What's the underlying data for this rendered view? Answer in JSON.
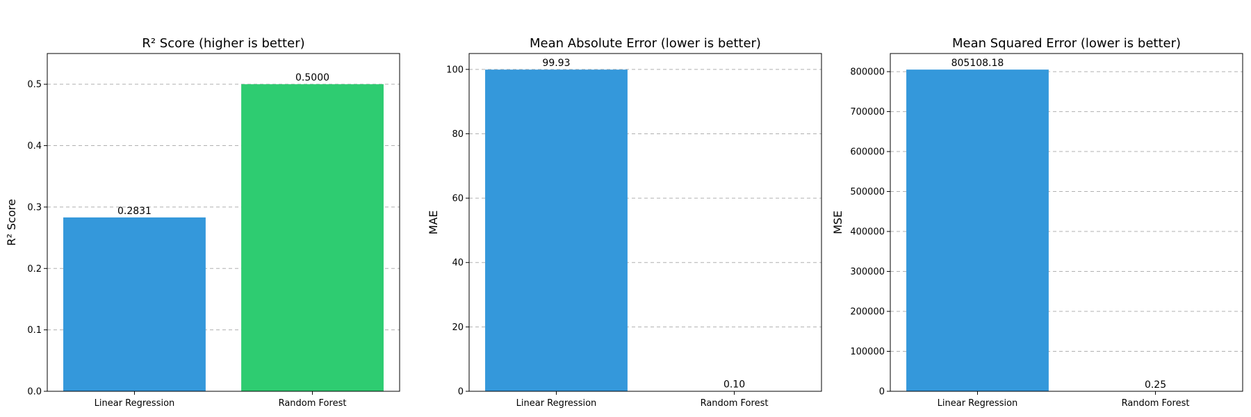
{
  "chart_data": [
    {
      "type": "bar",
      "title": "R² Score (higher is better)",
      "xlabel": "",
      "ylabel": "R² Score",
      "categories": [
        "Linear Regression",
        "Random Forest"
      ],
      "values": [
        0.2831,
        0.5
      ],
      "data_labels": [
        "0.2831",
        "0.5000"
      ],
      "colors": [
        "#3498db",
        "#2ecc71"
      ],
      "ylim": [
        0,
        0.55
      ],
      "yticks": [
        0.0,
        0.1,
        0.2,
        0.3,
        0.4,
        0.5
      ],
      "ytick_labels": [
        "0.0",
        "0.1",
        "0.2",
        "0.3",
        "0.4",
        "0.5"
      ],
      "grid": true
    },
    {
      "type": "bar",
      "title": "Mean Absolute Error (lower is better)",
      "xlabel": "",
      "ylabel": "MAE",
      "categories": [
        "Linear Regression",
        "Random Forest"
      ],
      "values": [
        99.93,
        0.1
      ],
      "data_labels": [
        "99.93",
        "0.10"
      ],
      "colors": [
        "#3498db",
        "#3498db"
      ],
      "ylim": [
        0,
        104.93
      ],
      "yticks": [
        0,
        20,
        40,
        60,
        80,
        100
      ],
      "ytick_labels": [
        "0",
        "20",
        "40",
        "60",
        "80",
        "100"
      ],
      "grid": true
    },
    {
      "type": "bar",
      "title": "Mean Squared Error (lower is better)",
      "xlabel": "",
      "ylabel": "MSE",
      "categories": [
        "Linear Regression",
        "Random Forest"
      ],
      "values": [
        805108.18,
        0.25
      ],
      "data_labels": [
        "805108.18",
        "0.25"
      ],
      "colors": [
        "#3498db",
        "#3498db"
      ],
      "ylim": [
        0,
        845363.6
      ],
      "yticks": [
        0,
        100000,
        200000,
        300000,
        400000,
        500000,
        600000,
        700000,
        800000
      ],
      "ytick_labels": [
        "0",
        "100000",
        "200000",
        "300000",
        "400000",
        "500000",
        "600000",
        "700000",
        "800000"
      ],
      "grid": true
    }
  ]
}
